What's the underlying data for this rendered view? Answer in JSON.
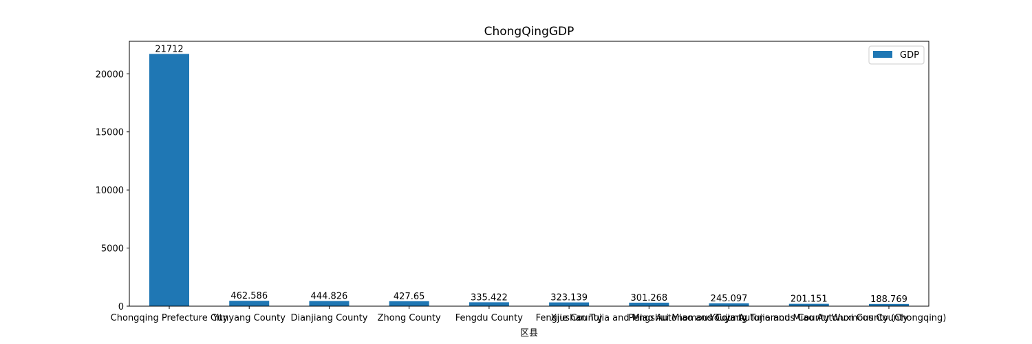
{
  "chart_data": {
    "type": "bar",
    "title": "ChongQingGDP",
    "xlabel": "区县",
    "ylabel": "",
    "categories": [
      "Chongqing Prefecture City",
      "Yunyang County",
      "Dianjiang County",
      "Zhong County",
      "Fengdu County",
      "Fengjie County",
      "Xiushan Tujia and Miao Autonomous County",
      "Pengshui Miao and Tujia Autonomous County",
      "Youyang Tujia and Miao Autonomous County",
      "Wuxi County (Chongqing)"
    ],
    "series": [
      {
        "name": "GDP",
        "values": [
          21712,
          462.586,
          444.826,
          427.65,
          335.422,
          323.139,
          301.268,
          245.097,
          201.151,
          188.769
        ],
        "labels": [
          "21712",
          "462.586",
          "444.826",
          "427.65",
          "335.422",
          "323.139",
          "301.268",
          "245.097",
          "201.151",
          "188.769"
        ]
      }
    ],
    "ylim": [
      0,
      22798
    ],
    "yticks": [
      0,
      5000,
      10000,
      15000,
      20000
    ],
    "legend": "top-right",
    "grid": false,
    "color": "#1f77b4"
  }
}
